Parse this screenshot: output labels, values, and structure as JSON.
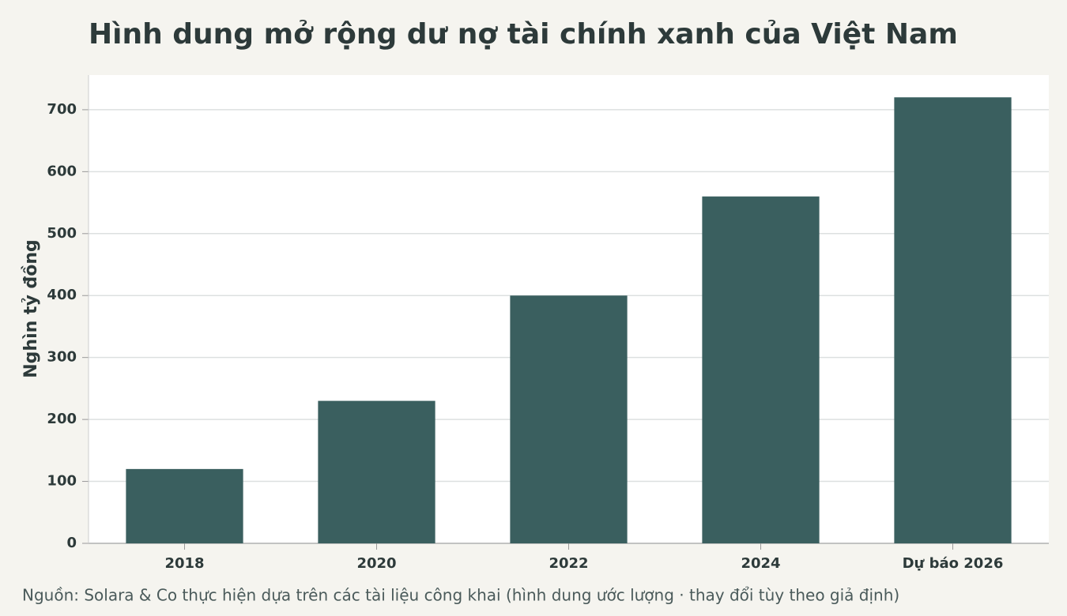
{
  "chart_data": {
    "type": "bar",
    "title": "Hình dung mở rộng dư nợ tài chính xanh của Việt Nam",
    "y_label": "Nghìn tỷ đồng",
    "source": "Nguồn: Solara & Co thực hiện dựa trên các tài liệu công khai (hình dung ước lượng · thay đổi tùy theo giả định)",
    "categories": [
      "2018",
      "2020",
      "2022",
      "2024",
      "Dự báo 2026"
    ],
    "values": [
      120,
      230,
      400,
      560,
      720
    ],
    "color": "#3a5f5f",
    "ylim": [
      0,
      756
    ],
    "yticks": [
      0,
      100,
      200,
      300,
      400,
      500,
      600,
      700
    ],
    "grid": true
  }
}
